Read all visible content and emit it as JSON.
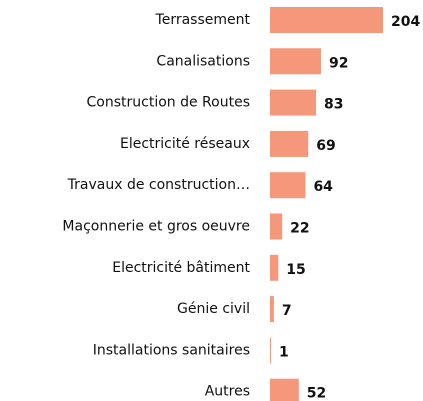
{
  "chart_data": {
    "type": "bar",
    "orientation": "horizontal",
    "categories": [
      "Terrassement",
      "Canalisations",
      "Construction de Routes",
      "Electricité réseaux",
      "Travaux de construction…",
      "Maçonnerie et gros oeuvre",
      "Electricité bâtiment",
      "Génie civil",
      "Installations sanitaires",
      "Autres"
    ],
    "values": [
      204,
      92,
      83,
      69,
      64,
      22,
      15,
      7,
      1,
      52
    ],
    "color": "#f4977b"
  }
}
